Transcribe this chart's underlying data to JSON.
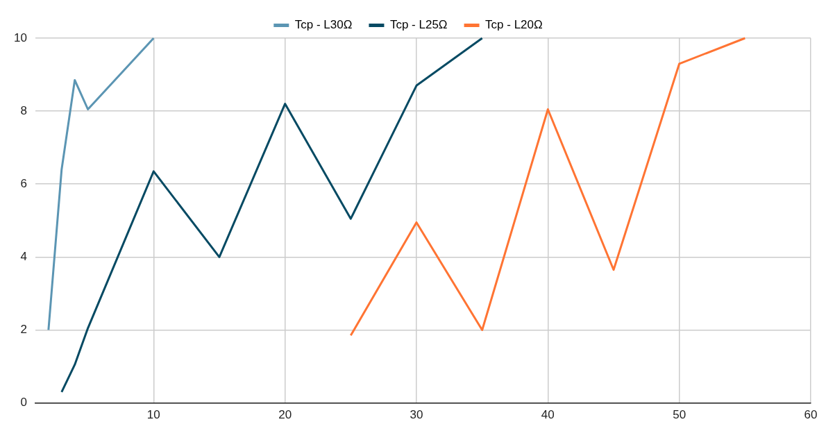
{
  "chart_data": {
    "type": "line",
    "xlim": [
      1,
      60
    ],
    "xticks": [
      10,
      20,
      30,
      40,
      50,
      60
    ],
    "ylim": [
      0,
      10
    ],
    "yticks": [
      0,
      2,
      4,
      6,
      8,
      10
    ],
    "grid": true,
    "legend": "top",
    "marker": "none",
    "line_style": "solid",
    "series": [
      {
        "name": "Tcp - L30Ω",
        "color": "#5b95b3",
        "x": [
          2,
          3,
          4,
          5,
          10
        ],
        "values": [
          2,
          6.4,
          8.85,
          8.05,
          10
        ]
      },
      {
        "name": "Tcp - L25Ω",
        "color": "#064a63",
        "x": [
          3,
          4,
          5,
          10,
          15,
          20,
          25,
          30,
          35
        ],
        "values": [
          0.3,
          1.05,
          2.05,
          6.35,
          4,
          8.2,
          5.05,
          8.7,
          10
        ]
      },
      {
        "name": "Tcp - L20Ω",
        "color": "#ff7433",
        "x": [
          25,
          30,
          35,
          40,
          45,
          50,
          55
        ],
        "values": [
          1.85,
          4.95,
          2,
          8.05,
          3.65,
          9.3,
          10
        ]
      }
    ]
  }
}
